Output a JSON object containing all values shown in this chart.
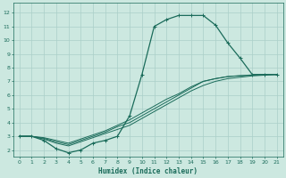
{
  "xlabel": "Humidex (Indice chaleur)",
  "bg_color": "#cce8e0",
  "grid_color": "#aacfc8",
  "line_color": "#1a6b5a",
  "xlim": [
    -0.5,
    21.5
  ],
  "ylim": [
    1.5,
    12.7
  ],
  "xticks": [
    0,
    1,
    2,
    3,
    4,
    5,
    6,
    7,
    8,
    9,
    10,
    11,
    12,
    13,
    14,
    15,
    16,
    17,
    18,
    19,
    20,
    21
  ],
  "yticks": [
    2,
    3,
    4,
    5,
    6,
    7,
    8,
    9,
    10,
    11,
    12
  ],
  "curve1_x": [
    0,
    1,
    2,
    3,
    4,
    5,
    6,
    7,
    8,
    9,
    10,
    11,
    12,
    13,
    14,
    15,
    16,
    17,
    18,
    19,
    20,
    21
  ],
  "curve1_y": [
    3.0,
    3.0,
    2.7,
    2.1,
    1.8,
    2.0,
    2.5,
    2.7,
    3.0,
    4.5,
    7.5,
    11.0,
    11.5,
    11.8,
    11.8,
    11.8,
    11.1,
    9.8,
    8.7,
    7.5,
    7.5,
    7.5
  ],
  "curve2_x": [
    0,
    1,
    2,
    3,
    4,
    5,
    6,
    7,
    8,
    9,
    10,
    11,
    12,
    13,
    14,
    15,
    16,
    17,
    18,
    19,
    20,
    21
  ],
  "curve2_y": [
    3.0,
    3.0,
    2.8,
    2.5,
    2.3,
    2.6,
    2.9,
    3.2,
    3.5,
    3.8,
    4.3,
    4.8,
    5.3,
    5.8,
    6.3,
    6.7,
    7.0,
    7.2,
    7.3,
    7.4,
    7.45,
    7.5
  ],
  "curve3_x": [
    0,
    1,
    2,
    3,
    4,
    5,
    6,
    7,
    8,
    9,
    10,
    11,
    12,
    13,
    14,
    15,
    16,
    17,
    18,
    19,
    20,
    21
  ],
  "curve3_y": [
    3.0,
    3.0,
    2.85,
    2.6,
    2.4,
    2.7,
    3.0,
    3.3,
    3.7,
    4.0,
    4.5,
    5.0,
    5.5,
    6.0,
    6.5,
    7.0,
    7.2,
    7.35,
    7.4,
    7.45,
    7.5,
    7.5
  ],
  "curve4_x": [
    0,
    1,
    2,
    3,
    4,
    5,
    6,
    7,
    8,
    9,
    10,
    11,
    12,
    13,
    14,
    15,
    16,
    17,
    18,
    19,
    20,
    21
  ],
  "curve4_y": [
    3.0,
    3.0,
    2.9,
    2.7,
    2.5,
    2.8,
    3.1,
    3.4,
    3.8,
    4.2,
    4.7,
    5.2,
    5.7,
    6.1,
    6.6,
    7.0,
    7.2,
    7.35,
    7.42,
    7.47,
    7.5,
    7.5
  ]
}
